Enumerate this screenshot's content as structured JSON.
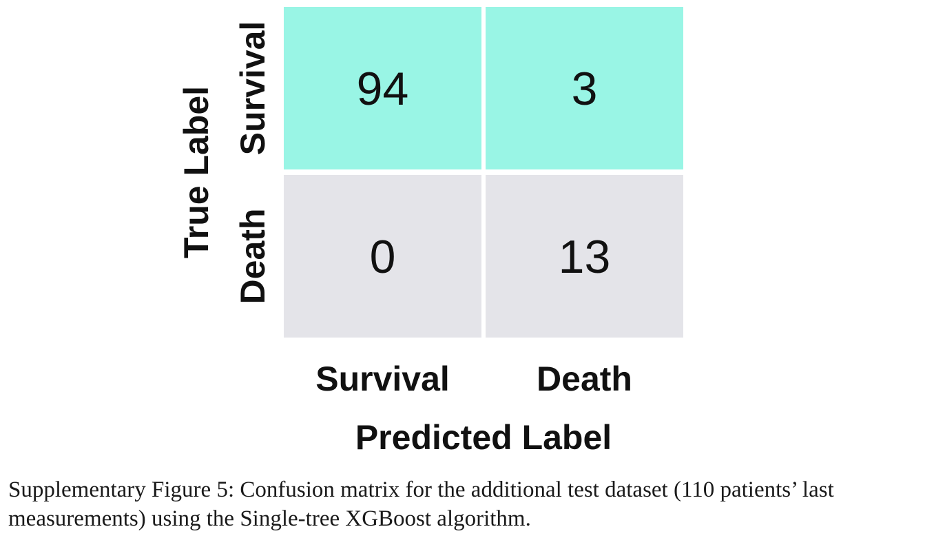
{
  "chart_data": {
    "type": "heatmap",
    "xlabel": "Predicted Label",
    "ylabel": "True Label",
    "x_categories": [
      "Survival",
      "Death"
    ],
    "y_categories": [
      "Survival",
      "Death"
    ],
    "values": [
      [
        94,
        3
      ],
      [
        0,
        13
      ]
    ],
    "colors": {
      "high": "#99f5e5",
      "low": "#e4e4e9"
    }
  },
  "caption": "Supplementary Figure 5: Confusion matrix for the additional test dataset (110 patients’ last measurements) using the Single-tree XGBoost algorithm."
}
